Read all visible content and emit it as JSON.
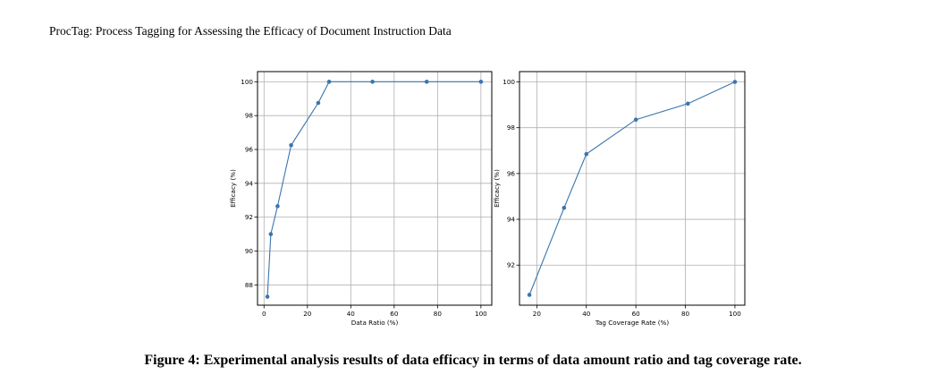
{
  "header": {
    "running_title": "ProcTag: Process Tagging for Assessing the Efficacy of Document Instruction Data"
  },
  "figure": {
    "caption_label": "Figure 4:",
    "caption_text": "Experimental analysis results of data efficacy in terms of data amount ratio and tag coverage rate."
  },
  "chart_data": [
    {
      "type": "line",
      "title": "",
      "xlabel": "Data Ratio (%)",
      "ylabel": "Efficacy (%)",
      "xlim": [
        -3,
        105
      ],
      "ylim": [
        86.8,
        100.6
      ],
      "xticks": [
        0,
        20,
        40,
        60,
        80,
        100
      ],
      "yticks": [
        88,
        90,
        92,
        94,
        96,
        98,
        100
      ],
      "grid": true,
      "color": "#3b75af",
      "series": [
        {
          "x": [
            1.56,
            3.13,
            6.25,
            12.5,
            25,
            30,
            50,
            75,
            100
          ],
          "y": [
            87.3,
            91.0,
            92.65,
            96.25,
            98.75,
            100,
            100,
            100,
            100
          ]
        }
      ]
    },
    {
      "type": "line",
      "title": "",
      "xlabel": "Tag Coverage Rate (%)",
      "ylabel": "Efficacy (%)",
      "xlim": [
        13,
        104
      ],
      "ylim": [
        90.25,
        100.45
      ],
      "xticks": [
        20,
        40,
        60,
        80,
        100
      ],
      "yticks": [
        92,
        94,
        96,
        98,
        100
      ],
      "grid": true,
      "color": "#3b75af",
      "series": [
        {
          "x": [
            17,
            31,
            40,
            60,
            81,
            100
          ],
          "y": [
            90.7,
            94.5,
            96.85,
            98.35,
            99.05,
            100
          ]
        }
      ]
    }
  ]
}
